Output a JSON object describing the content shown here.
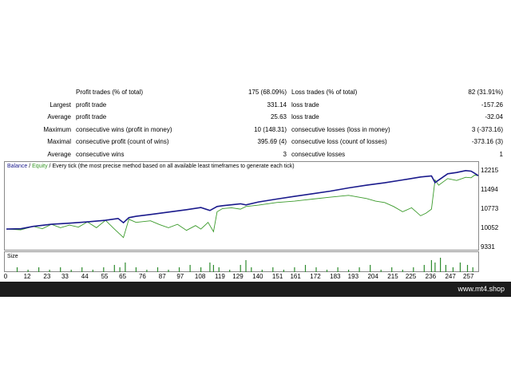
{
  "stats": [
    {
      "left_label": "",
      "left_name": "Profit trades (% of total)",
      "left_value": "175 (68.09%)",
      "right_name": "Loss trades (% of total)",
      "right_value": "82 (31.91%)"
    },
    {
      "left_label": "Largest",
      "left_name": "profit trade",
      "left_value": "331.14",
      "right_name": "loss trade",
      "right_value": "-157.26"
    },
    {
      "left_label": "Average",
      "left_name": "profit trade",
      "left_value": "25.63",
      "right_name": "loss trade",
      "right_value": "-32.04"
    },
    {
      "left_label": "Maximum",
      "left_name": "consecutive wins (profit in money)",
      "left_value": "10 (148.31)",
      "right_name": "consecutive losses (loss in money)",
      "right_value": "3 (-373.16)"
    },
    {
      "left_label": "Maximal",
      "left_name": "consecutive profit (count of wins)",
      "left_value": "395.69 (4)",
      "right_name": "consecutive loss (count of losses)",
      "right_value": "-373.16 (3)"
    },
    {
      "left_label": "Average",
      "left_name": "consecutive wins",
      "left_value": "3",
      "right_name": "consecutive losses",
      "right_value": "1"
    }
  ],
  "legend": {
    "balance": "Balance",
    "sep1": " / ",
    "equity": "Equity",
    "sep2": " / ",
    "text": "Every tick (the most precise method based on all available least timeframes to generate each tick)"
  },
  "size_label": "Size",
  "footer": {
    "site": "www.mt4.shop"
  },
  "colors": {
    "balance": "#1a1a8c",
    "equity": "#3a9a2a",
    "bars": "#2e8b2e"
  },
  "chart_data": {
    "type": "line",
    "x_ticks": [
      "0",
      "12",
      "23",
      "33",
      "44",
      "55",
      "65",
      "76",
      "87",
      "97",
      "108",
      "119",
      "129",
      "140",
      "151",
      "161",
      "172",
      "183",
      "193",
      "204",
      "215",
      "225",
      "236",
      "247",
      "257"
    ],
    "y_ticks": [
      "12215",
      "11494",
      "10773",
      "10052",
      "9331"
    ],
    "ylim": [
      9331,
      12215
    ],
    "xlim": [
      0,
      262
    ],
    "series": [
      {
        "name": "Balance",
        "x": [
          0,
          8,
          15,
          25,
          35,
          45,
          55,
          62,
          65,
          68,
          72,
          80,
          90,
          100,
          108,
          113,
          117,
          120,
          130,
          133,
          140,
          150,
          160,
          170,
          180,
          190,
          200,
          210,
          220,
          230,
          236,
          238,
          245,
          250,
          255,
          258,
          260,
          262
        ],
        "y": [
          10050,
          10060,
          10150,
          10230,
          10270,
          10320,
          10380,
          10450,
          10290,
          10480,
          10530,
          10600,
          10690,
          10780,
          10860,
          10750,
          10900,
          10930,
          11000,
          10960,
          11070,
          11180,
          11280,
          11380,
          11480,
          11600,
          11700,
          11790,
          11900,
          12010,
          12050,
          11800,
          12130,
          12180,
          12250,
          12230,
          12150,
          12060
        ]
      },
      {
        "name": "Equity",
        "x": [
          0,
          8,
          15,
          20,
          25,
          30,
          35,
          40,
          45,
          50,
          55,
          60,
          65,
          68,
          72,
          80,
          85,
          90,
          95,
          100,
          105,
          108,
          112,
          115,
          117,
          120,
          125,
          130,
          133,
          140,
          150,
          160,
          170,
          180,
          190,
          200,
          205,
          210,
          215,
          220,
          225,
          230,
          233,
          236,
          238,
          240,
          245,
          250,
          255,
          258,
          260,
          262
        ],
        "y": [
          10050,
          10020,
          10150,
          10060,
          10230,
          10100,
          10200,
          10120,
          10320,
          10100,
          10380,
          10050,
          9730,
          10420,
          10300,
          10360,
          10220,
          10100,
          10230,
          10000,
          10180,
          10050,
          10300,
          9950,
          10700,
          10820,
          10850,
          10800,
          10900,
          10950,
          11050,
          11100,
          11180,
          11250,
          11320,
          11200,
          11100,
          11050,
          10900,
          10700,
          10850,
          10550,
          10650,
          10800,
          11900,
          11700,
          11950,
          11880,
          12000,
          11980,
          12080,
          12060
        ]
      }
    ],
    "size_bars": {
      "x": [
        6,
        12,
        18,
        24,
        30,
        36,
        42,
        48,
        54,
        60,
        63,
        66,
        72,
        78,
        84,
        90,
        96,
        102,
        108,
        113,
        115,
        118,
        124,
        130,
        133,
        136,
        142,
        148,
        154,
        160,
        166,
        172,
        178,
        184,
        190,
        196,
        202,
        208,
        214,
        220,
        226,
        232,
        236,
        238,
        241,
        244,
        248,
        252,
        256,
        259
      ],
      "values": [
        2,
        1,
        2,
        1,
        2,
        1,
        2,
        1,
        2,
        3,
        2,
        4,
        2,
        1,
        2,
        1,
        2,
        3,
        2,
        4,
        3,
        2,
        1,
        3,
        5,
        2,
        1,
        2,
        1,
        2,
        3,
        2,
        1,
        2,
        1,
        2,
        3,
        1,
        2,
        1,
        2,
        3,
        5,
        4,
        6,
        3,
        2,
        4,
        3,
        2
      ]
    }
  }
}
